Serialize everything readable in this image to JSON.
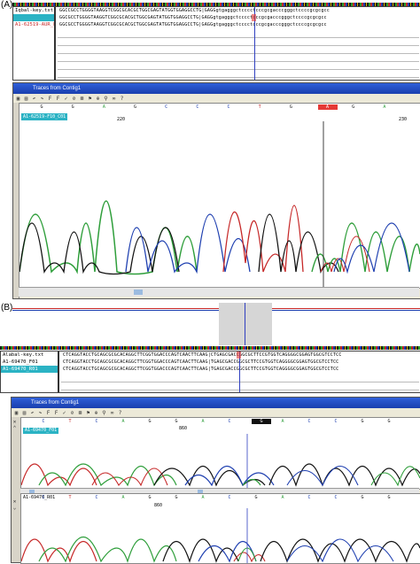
{
  "panel_a": {
    "label": "(A)",
    "names": [
      "Iqbal-key.txt",
      "",
      "A1-62519-AUR_F..."
    ],
    "seq_rows": [
      "GGCCGCCTGGGGTAAGGTCGGCGCACGCTGGCGAGTATGGTGGAGGCCTG|GAGGgtgagggctcccctcccgcgacccgggctccccgcgcgcc",
      "GGCGCCTGGGGTAAGGTCGGCGCACGCTGGCGAGTATGGTGGAGGCCTG|GAGGgtgagggctcccctcccgcgacccgggctccccgcgcgcc",
      "GGCGCCTGGGGTAAGGTCGGCGCACGCTGGCGAGTATGGTGGAGGCCTG|GAGGgtgagggctcccctcccgcgacccgggctccccgcgcgcc"
    ],
    "trace_title": "Traces from Contig1",
    "trace_name": "A1-62519-F10_C01",
    "basecalls": [
      "G",
      "G",
      "A",
      "G",
      "C",
      "C",
      "C",
      "T",
      "G",
      "A",
      "G",
      "A"
    ],
    "positions": [
      "220",
      "230"
    ],
    "highlight_base": "A"
  },
  "panel_b": {
    "label": "(B)",
    "names": [
      "Alabal-key.txt",
      "A1-69470_F01",
      "A1-69470_R01"
    ],
    "seq_rows": [
      "CTCAGGTACCTGCAGCGCGCACAGGCTTCGGTGGACCCAGTCAACTTCAAG|CTGAGCGACCGGCGCTTCCGTGGTCAGGGGCGGAGTGGCGTCCTCC",
      "CTCAGGTACCTGCAGCGCGCACAGGCTTCGGTGGACCCAGTCAACTTCAAG|TGAGCGACCGGCGCTTCCGTGGTCAGGGGCGGAGTGGCGTCCTCC",
      "CTCAGGTACCTGCAGCGCGCACAGGCTTCGGTGGACCCAGTCAACTTCAAG|TGAGCGACCGGCGCTTCCGTGGTCAGGGGCGGAGTGGCGTCCTCC"
    ],
    "trace_title": "Traces from Contig1",
    "trace1_name": "A1-69470_F01",
    "trace2_name": "A1-69470_R01",
    "basecalls1": [
      "C",
      "T",
      "C",
      "A",
      "G",
      "G",
      "A",
      "C",
      "G",
      "A",
      "C",
      "C",
      "G",
      "G"
    ],
    "basecalls2": [
      "C",
      "T",
      "C",
      "A",
      "G",
      "G",
      "A",
      "C",
      "G",
      "A",
      "C",
      "C",
      "G",
      "G"
    ],
    "positions": [
      "860"
    ],
    "highlight_base": "A"
  }
}
